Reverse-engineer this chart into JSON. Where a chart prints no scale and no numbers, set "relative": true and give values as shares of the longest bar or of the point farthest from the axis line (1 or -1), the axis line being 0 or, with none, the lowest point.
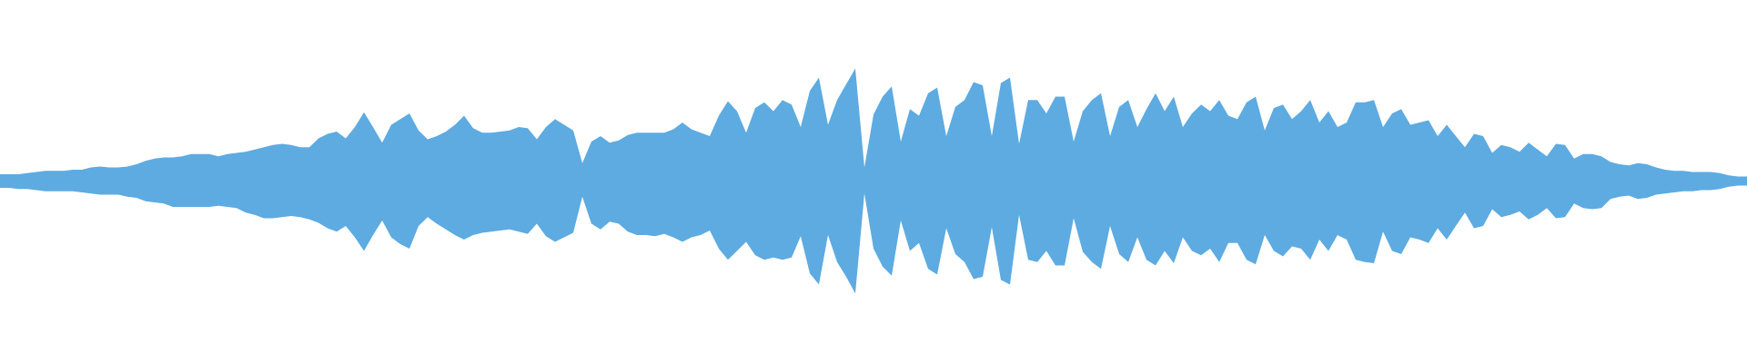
{
  "chart_data": {
    "type": "area",
    "relative": true,
    "categories": [
      null,
      null,
      null,
      null,
      null,
      null,
      null,
      null,
      null,
      null,
      null,
      null,
      null,
      null,
      null,
      null,
      null,
      null,
      null,
      null,
      null,
      null,
      null,
      null,
      null,
      null,
      null,
      null,
      null,
      null,
      null,
      null,
      null,
      null,
      null,
      null,
      null,
      null,
      null,
      null,
      null,
      null,
      null,
      null,
      null,
      null,
      null,
      null,
      null,
      null,
      null,
      null,
      null,
      null,
      null,
      null,
      null,
      null,
      null,
      null,
      null,
      null,
      null,
      null,
      null,
      null,
      null,
      null,
      null,
      null,
      null,
      null,
      null,
      null,
      null,
      null,
      null,
      null,
      null,
      null,
      null,
      null,
      null,
      null,
      null,
      null,
      null,
      null,
      null,
      null,
      null,
      null,
      null,
      null,
      null,
      null,
      null,
      null,
      null,
      null,
      null,
      null,
      null,
      null,
      null,
      null,
      null,
      null,
      null,
      null,
      null,
      null,
      null,
      null,
      null,
      null,
      null,
      null,
      null,
      null,
      null,
      null,
      null,
      null,
      null,
      null,
      null,
      null,
      null,
      null,
      null,
      null,
      null,
      null,
      null,
      null,
      null,
      null,
      null,
      null,
      null,
      null,
      null,
      null,
      null,
      null,
      null,
      null,
      null,
      null,
      null,
      null,
      null,
      null,
      null,
      null,
      null,
      null,
      null,
      null,
      null,
      null,
      null,
      null,
      null,
      null,
      null,
      null,
      null,
      null,
      null,
      null,
      null,
      null,
      null,
      null,
      null,
      null,
      null,
      null,
      null,
      null,
      null,
      null,
      null,
      null,
      null,
      null,
      null,
      null,
      null,
      null,
      null
    ],
    "series": [
      {
        "color": "#5dabe1",
        "values": [
          0.06,
          0.06,
          0.06,
          0.07,
          0.08,
          0.09,
          0.09,
          0.09,
          0.1,
          0.1,
          0.12,
          0.13,
          0.12,
          0.12,
          0.13,
          0.15,
          0.18,
          0.2,
          0.21,
          0.21,
          0.22,
          0.24,
          0.24,
          0.24,
          0.22,
          0.24,
          0.25,
          0.26,
          0.28,
          0.3,
          0.32,
          0.33,
          0.32,
          0.3,
          0.3,
          0.38,
          0.42,
          0.44,
          0.38,
          0.48,
          0.61,
          0.48,
          0.34,
          0.5,
          0.55,
          0.6,
          0.45,
          0.37,
          0.4,
          0.44,
          0.5,
          0.58,
          0.47,
          0.43,
          0.43,
          0.44,
          0.45,
          0.48,
          0.47,
          0.37,
          0.48,
          0.55,
          0.5,
          0.45,
          0.16,
          0.35,
          0.4,
          0.34,
          0.36,
          0.41,
          0.43,
          0.43,
          0.43,
          0.43,
          0.46,
          0.52,
          0.46,
          0.43,
          0.4,
          0.58,
          0.71,
          0.62,
          0.43,
          0.65,
          0.7,
          0.62,
          0.72,
          0.68,
          0.48,
          0.8,
          0.92,
          0.5,
          0.72,
          0.86,
          1,
          0.12,
          0.59,
          0.75,
          0.84,
          0.35,
          0.64,
          0.58,
          0.78,
          0.83,
          0.4,
          0.66,
          0.72,
          0.88,
          0.85,
          0.4,
          0.87,
          0.92,
          0.33,
          0.72,
          0.72,
          0.6,
          0.75,
          0.75,
          0.35,
          0.62,
          0.72,
          0.78,
          0.4,
          0.66,
          0.72,
          0.48,
          0.64,
          0.78,
          0.62,
          0.75,
          0.48,
          0.6,
          0.68,
          0.62,
          0.72,
          0.58,
          0.55,
          0.7,
          0.75,
          0.45,
          0.65,
          0.68,
          0.55,
          0.62,
          0.72,
          0.52,
          0.62,
          0.48,
          0.52,
          0.7,
          0.7,
          0.72,
          0.48,
          0.6,
          0.64,
          0.5,
          0.52,
          0.54,
          0.4,
          0.5,
          0.4,
          0.3,
          0.42,
          0.4,
          0.25,
          0.32,
          0.3,
          0.26,
          0.34,
          0.28,
          0.22,
          0.33,
          0.32,
          0.2,
          0.24,
          0.24,
          0.22,
          0.17,
          0.15,
          0.14,
          0.16,
          0.15,
          0.12,
          0.1,
          0.09,
          0.09,
          0.08,
          0.08,
          0.08,
          0.07,
          0.05,
          0.04,
          0.04
        ]
      },
      {
        "color": "#5dabe1",
        "values": [
          -0.06,
          -0.06,
          -0.07,
          -0.07,
          -0.08,
          -0.09,
          -0.09,
          -0.09,
          -0.09,
          -0.1,
          -0.11,
          -0.12,
          -0.12,
          -0.12,
          -0.14,
          -0.15,
          -0.18,
          -0.19,
          -0.2,
          -0.23,
          -0.23,
          -0.23,
          -0.23,
          -0.23,
          -0.22,
          -0.23,
          -0.24,
          -0.28,
          -0.3,
          -0.33,
          -0.33,
          -0.32,
          -0.31,
          -0.32,
          -0.34,
          -0.37,
          -0.42,
          -0.45,
          -0.4,
          -0.5,
          -0.62,
          -0.48,
          -0.35,
          -0.5,
          -0.56,
          -0.6,
          -0.4,
          -0.32,
          -0.38,
          -0.43,
          -0.48,
          -0.52,
          -0.48,
          -0.46,
          -0.45,
          -0.44,
          -0.43,
          -0.45,
          -0.47,
          -0.38,
          -0.49,
          -0.54,
          -0.5,
          -0.46,
          -0.14,
          -0.38,
          -0.43,
          -0.36,
          -0.38,
          -0.45,
          -0.48,
          -0.48,
          -0.49,
          -0.47,
          -0.5,
          -0.54,
          -0.5,
          -0.48,
          -0.44,
          -0.6,
          -0.7,
          -0.62,
          -0.54,
          -0.66,
          -0.7,
          -0.68,
          -0.7,
          -0.68,
          -0.49,
          -0.82,
          -0.92,
          -0.48,
          -0.72,
          -0.85,
          -1,
          -0.11,
          -0.6,
          -0.76,
          -0.84,
          -0.35,
          -0.62,
          -0.55,
          -0.78,
          -0.83,
          -0.42,
          -0.65,
          -0.72,
          -0.87,
          -0.85,
          -0.41,
          -0.88,
          -0.92,
          -0.3,
          -0.7,
          -0.72,
          -0.62,
          -0.75,
          -0.75,
          -0.33,
          -0.63,
          -0.72,
          -0.78,
          -0.4,
          -0.65,
          -0.72,
          -0.5,
          -0.7,
          -0.75,
          -0.62,
          -0.73,
          -0.5,
          -0.62,
          -0.66,
          -0.6,
          -0.72,
          -0.55,
          -0.55,
          -0.7,
          -0.74,
          -0.48,
          -0.62,
          -0.67,
          -0.58,
          -0.6,
          -0.7,
          -0.52,
          -0.62,
          -0.48,
          -0.52,
          -0.7,
          -0.72,
          -0.73,
          -0.45,
          -0.62,
          -0.65,
          -0.5,
          -0.52,
          -0.55,
          -0.42,
          -0.52,
          -0.4,
          -0.28,
          -0.42,
          -0.4,
          -0.25,
          -0.32,
          -0.3,
          -0.27,
          -0.34,
          -0.3,
          -0.24,
          -0.33,
          -0.32,
          -0.2,
          -0.24,
          -0.25,
          -0.24,
          -0.16,
          -0.14,
          -0.13,
          -0.16,
          -0.15,
          -0.12,
          -0.11,
          -0.1,
          -0.09,
          -0.09,
          -0.08,
          -0.08,
          -0.07,
          -0.05,
          -0.04,
          -0.04
        ]
      }
    ]
  }
}
